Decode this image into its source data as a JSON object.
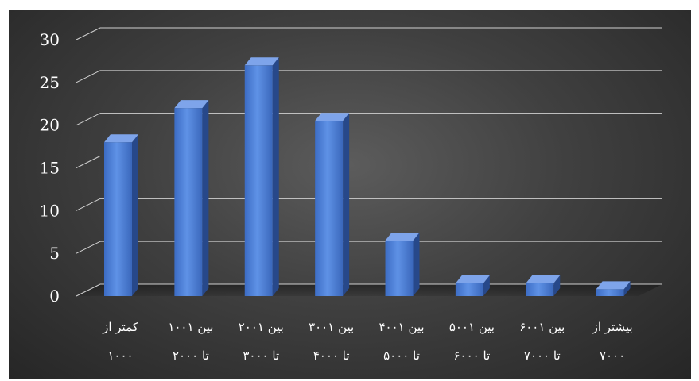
{
  "chart_data": {
    "type": "bar",
    "title": "",
    "xlabel": "",
    "ylabel": "",
    "categories": [
      [
        "کمتر از",
        "۱۰۰۰"
      ],
      [
        "بین ۱۰۰۱",
        "تا ۲۰۰۰"
      ],
      [
        "بین ۲۰۰۱",
        "تا ۳۰۰۰"
      ],
      [
        "بین ۳۰۰۱",
        "تا ۴۰۰۰"
      ],
      [
        "بین ۴۰۰۱",
        "تا ۵۰۰۰"
      ],
      [
        "بین ۵۰۰۱",
        "تا ۶۰۰۰"
      ],
      [
        "بین ۶۰۰۱",
        "تا ۷۰۰۰"
      ],
      [
        "بیشتر از",
        "۷۰۰۰"
      ]
    ],
    "values": [
      18,
      22,
      27,
      20.5,
      6.5,
      1.5,
      1.5,
      0.8
    ],
    "ylim": [
      0,
      30
    ],
    "yticks": [
      0,
      5,
      10,
      15,
      20,
      25,
      30
    ],
    "grid": true,
    "legend": "none",
    "colors": {
      "bar": "#4a7bd0",
      "background": "#404040",
      "grid": "#d0d0d0",
      "text": "#ffffff"
    }
  }
}
